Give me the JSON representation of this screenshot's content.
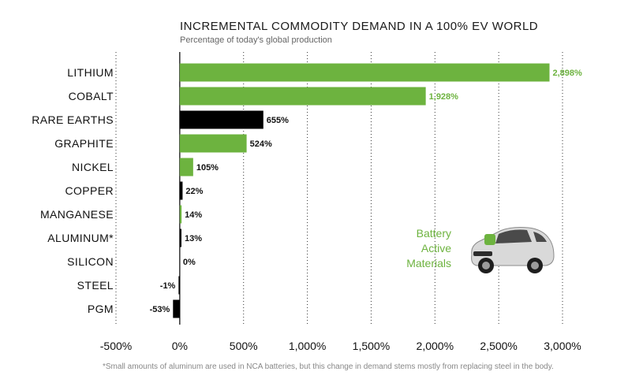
{
  "chart_data": {
    "type": "bar",
    "orientation": "horizontal",
    "title": "INCREMENTAL COMMODITY DEMAND IN A 100% EV WORLD",
    "subtitle": "Percentage of today's global production",
    "categories": [
      "LITHIUM",
      "COBALT",
      "RARE EARTHS",
      "GRAPHITE",
      "NICKEL",
      "COPPER",
      "MANGANESE",
      "ALUMINUM*",
      "SILICON",
      "STEEL",
      "PGM"
    ],
    "values": [
      2898,
      1928,
      655,
      524,
      105,
      22,
      14,
      13,
      0,
      -1,
      -53
    ],
    "value_labels": [
      "2,898%",
      "1,928%",
      "655%",
      "524%",
      "105%",
      "22%",
      "14%",
      "13%",
      "0%",
      "-1%",
      "-53%"
    ],
    "battery_active": [
      true,
      true,
      false,
      true,
      true,
      false,
      true,
      false,
      false,
      false,
      false
    ],
    "xlim": [
      -500,
      3000
    ],
    "xticks": [
      -500,
      0,
      500,
      1000,
      1500,
      2000,
      2500,
      3000
    ],
    "xtick_labels": [
      "-500%",
      "0%",
      "500%",
      "1,000%",
      "1,500%",
      "2,000%",
      "2,500%",
      "3,000%"
    ],
    "legend": [
      "Battery",
      "Active",
      "Materials"
    ],
    "legend_position": "middle-right",
    "footnote": "*Small amounts of aluminum are used in NCA batteries, but this change in demand stems mostly from replacing steel in the body.",
    "colors": {
      "battery": "#6db33f",
      "other": "#000000",
      "grid": "#333333"
    }
  }
}
